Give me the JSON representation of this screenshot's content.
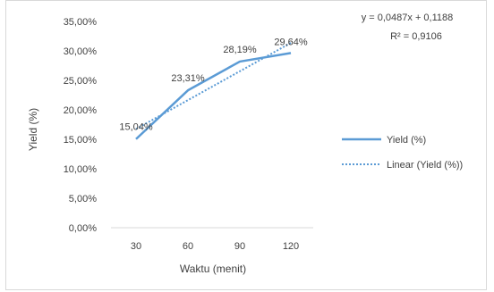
{
  "chart_data": {
    "type": "line",
    "x": [
      30,
      60,
      90,
      120
    ],
    "categories": [
      "30",
      "60",
      "90",
      "120"
    ],
    "series": [
      {
        "name": "Yield (%)",
        "values": [
          15.04,
          23.31,
          28.19,
          29.64
        ],
        "data_labels": [
          "15,04%",
          "23,31%",
          "28,19%",
          "29,64%"
        ],
        "color": "#5b9bd5",
        "style": "solid"
      },
      {
        "name": "Linear (Yield (%))",
        "trendline_of": "Yield (%)",
        "slope": 0.0487,
        "intercept": 0.1188,
        "color": "#5b9bd5",
        "style": "dotted"
      }
    ],
    "xlabel": "Waktu (menit)",
    "ylabel": "Yield (%)",
    "ylim": [
      0,
      35
    ],
    "yticks": [
      0,
      5,
      10,
      15,
      20,
      25,
      30,
      35
    ],
    "ytick_labels": [
      "0,00%",
      "5,00%",
      "10,00%",
      "15,00%",
      "20,00%",
      "25,00%",
      "30,00%",
      "35,00%"
    ],
    "grid": false,
    "legend": "right",
    "equation": {
      "line1": "y = 0,0487x + 0,1188",
      "line2": "R² = 0,9106"
    }
  }
}
